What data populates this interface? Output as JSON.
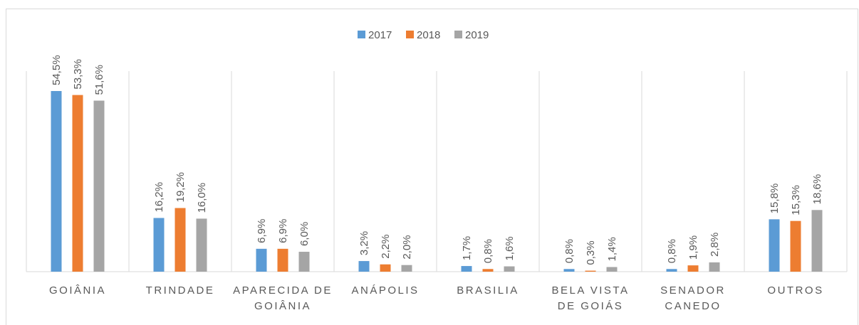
{
  "chart_data": {
    "type": "bar",
    "categories": [
      "GOIÂNIA",
      "TRINDADE",
      "APARECIDA DE GOIÂNIA",
      "ANÁPOLIS",
      "BRASILIA",
      "BELA VISTA DE GOIÁS",
      "SENADOR CANEDO",
      "OUTROS"
    ],
    "series": [
      {
        "name": "2017",
        "color": "#5b9bd5",
        "values": [
          54.5,
          16.2,
          6.9,
          3.2,
          1.7,
          0.8,
          0.8,
          15.8
        ],
        "value_labels": [
          "54,5%",
          "16,2%",
          "6,9%",
          "3,2%",
          "1,7%",
          "0,8%",
          "0,8%",
          "15,8%"
        ]
      },
      {
        "name": "2018",
        "color": "#ed7d31",
        "values": [
          53.3,
          19.2,
          6.9,
          2.2,
          0.8,
          0.3,
          1.9,
          15.3
        ],
        "value_labels": [
          "53,3%",
          "19,2%",
          "6,9%",
          "2,2%",
          "0,8%",
          "0,3%",
          "1,9%",
          "15,3%"
        ]
      },
      {
        "name": "2019",
        "color": "#a5a5a5",
        "values": [
          51.6,
          16.0,
          6.0,
          2.0,
          1.6,
          1.4,
          2.8,
          18.6
        ],
        "value_labels": [
          "51,6%",
          "16,0%",
          "6,0%",
          "2,0%",
          "1,6%",
          "1,4%",
          "2,8%",
          "18,6%"
        ]
      }
    ],
    "legend": "top"
  }
}
